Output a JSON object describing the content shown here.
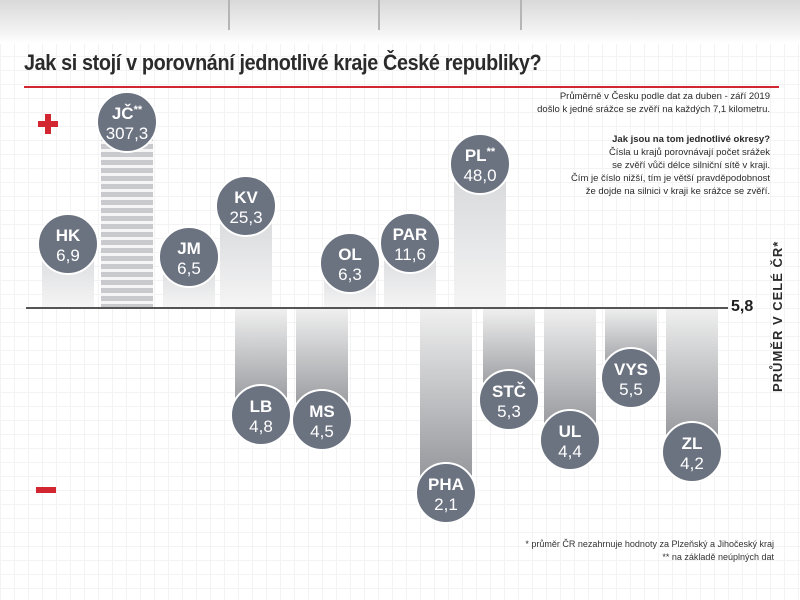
{
  "title": "Jak si stojí v porovnání jednotlivé kraje České republiky?",
  "notes": {
    "average_line1": "Průměrně v Česku podle dat za duben - září 2019",
    "average_line2": "došlo k jedné srážce se zvěří na každých 7,1 kilometru.",
    "question": "Jak jsou na tom jednotlivé okresy?",
    "explain_line1": "Čísla u krajů porovnávají počet srážek",
    "explain_line2": "se zvěří vůči délce silniční sítě v kraji.",
    "explain_line3": "Čím je číslo nižší, tím je větší pravděpodobnost",
    "explain_line4": "že dojde na silnici v kraji ke srážce se zvěří.",
    "footnote1": "* průměr ČR nezahrnuje hodnoty za Plzeňský a Jihočeský kraj",
    "footnote2": "** na základě neúplných dat"
  },
  "average_label": "PRŮMĚR V CELÉ ČR*",
  "average_value_text": "5,8",
  "colors": {
    "accent_red": "#d22630",
    "bubble": "#6b7280",
    "bar_light": "#eeeeee",
    "bar_dark": "#8b8d92"
  },
  "chart_data": {
    "type": "bar",
    "baseline": 5.8,
    "categories": [
      "HK",
      "JČ",
      "LB",
      "MS",
      "JM",
      "KV",
      "OL",
      "PAR",
      "PHA",
      "PL",
      "STČ",
      "UL",
      "VYS",
      "ZL"
    ],
    "labels": [
      "6,9",
      "307,3",
      "4,8",
      "4,5",
      "6,5",
      "25,3",
      "6,3",
      "11,6",
      "2,1",
      "48,0",
      "5,3",
      "4,4",
      "5,5",
      "4,2"
    ],
    "values": [
      6.9,
      307.3,
      4.8,
      4.5,
      6.5,
      25.3,
      6.3,
      11.6,
      2.1,
      48.0,
      5.3,
      4.4,
      5.5,
      4.2
    ],
    "footnote_marks": [
      "",
      "**",
      "",
      "",
      "",
      "",
      "",
      "",
      "",
      "**",
      "",
      "",
      "",
      ""
    ],
    "truncated": [
      "",
      "yes",
      "",
      "",
      "",
      "",
      "",
      "",
      "",
      "",
      "",
      "",
      "",
      ""
    ]
  }
}
